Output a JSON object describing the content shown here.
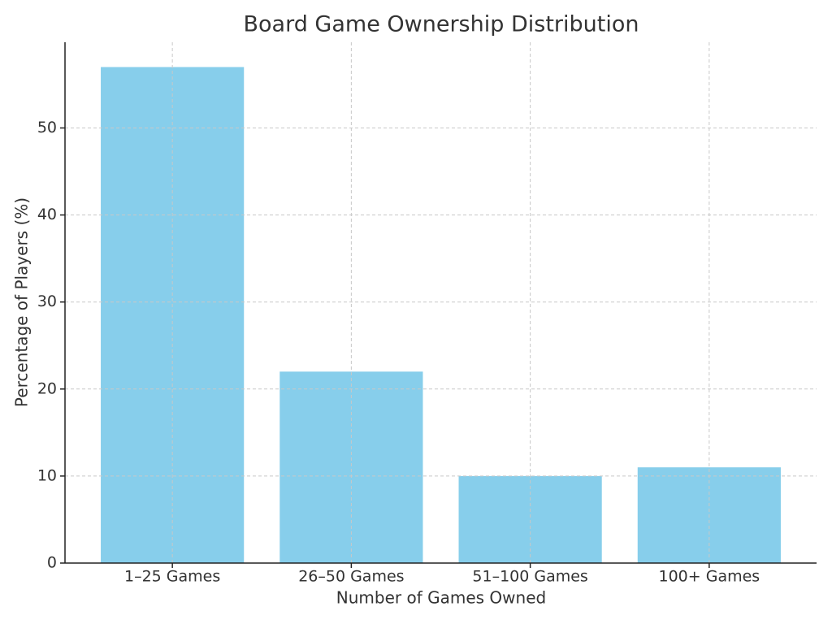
{
  "chart_data": {
    "type": "bar",
    "title": "Board Game Ownership Distribution",
    "x_label": "Number of Games Owned",
    "y_label": "Percentage of Players (%)",
    "categories": [
      "1–25 Games",
      "26–50 Games",
      "51–100 Games",
      "100+ Games"
    ],
    "values": [
      57,
      22,
      10,
      11
    ],
    "color": "#87ceeb",
    "ylim": [
      0,
      59.85
    ],
    "yticks": [
      0,
      10,
      20,
      30,
      40,
      50
    ],
    "grid": true
  }
}
